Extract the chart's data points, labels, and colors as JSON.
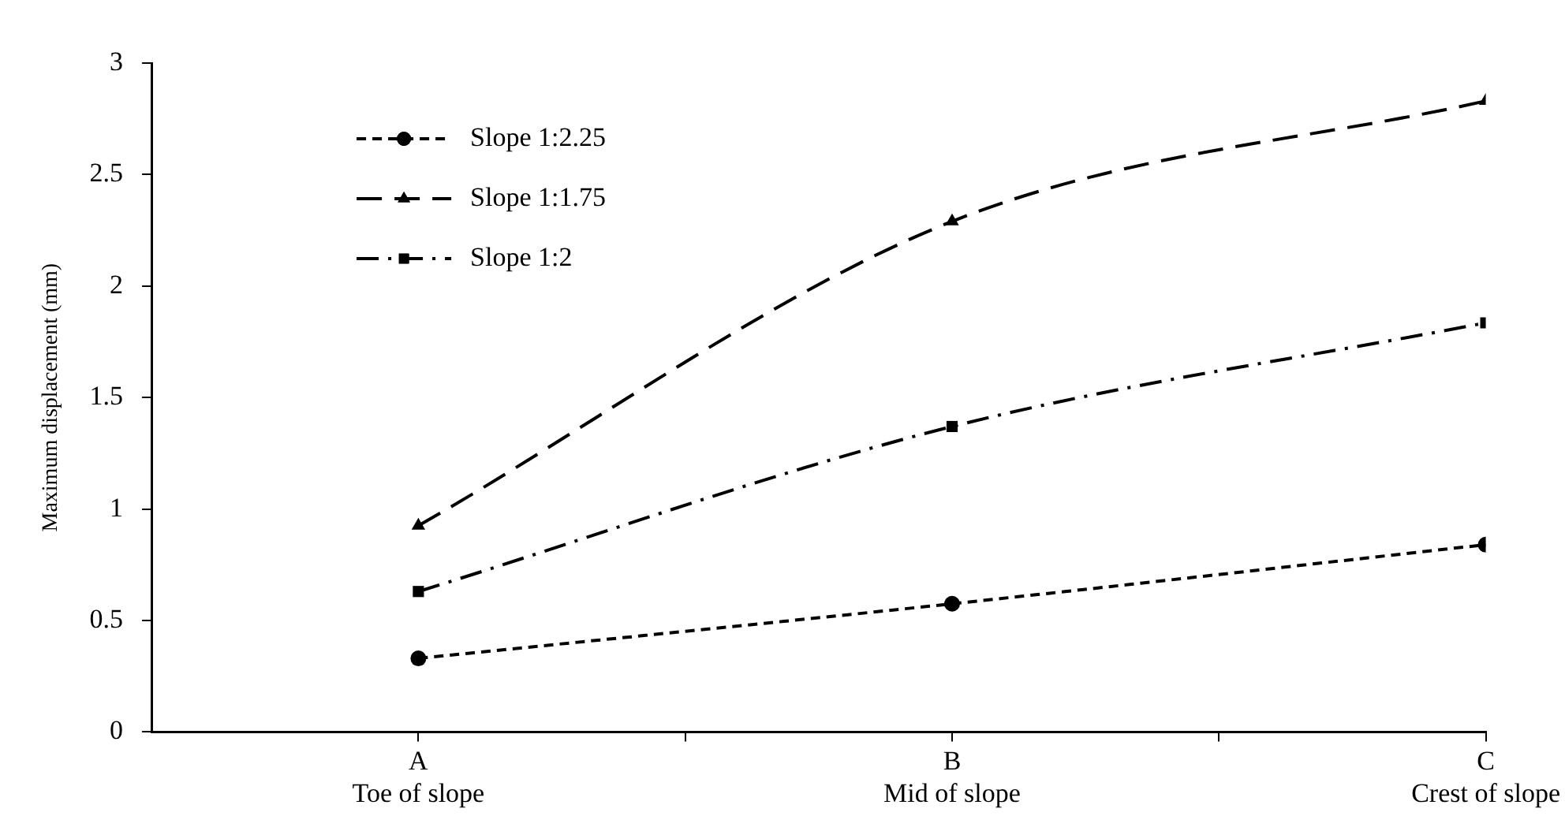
{
  "chart_data": {
    "type": "line",
    "ylabel": "Maximum displacement (mm)",
    "categories": [
      "A\nToe of slope",
      "B\nMid of slope",
      "C\nCrest of slope"
    ],
    "series": [
      {
        "name": "Slope 1:2.25",
        "color": "#000000",
        "values": [
          0.33,
          0.575,
          0.84
        ],
        "marker": "circle",
        "line_style": "dotted"
      },
      {
        "name": "Slope 1:1.75",
        "color": "#000000",
        "values": [
          0.925,
          2.29,
          2.83
        ],
        "marker": "triangle",
        "line_style": "dashed"
      },
      {
        "name": "Slope 1:2",
        "color": "#000000",
        "values": [
          0.63,
          1.37,
          1.835
        ],
        "marker": "square",
        "line_style": "dashdot"
      }
    ],
    "ylim": [
      0,
      3
    ],
    "yticks": [
      0,
      0.5,
      1,
      1.5,
      2,
      2.5,
      3
    ],
    "grid": false,
    "legend": "top left"
  }
}
